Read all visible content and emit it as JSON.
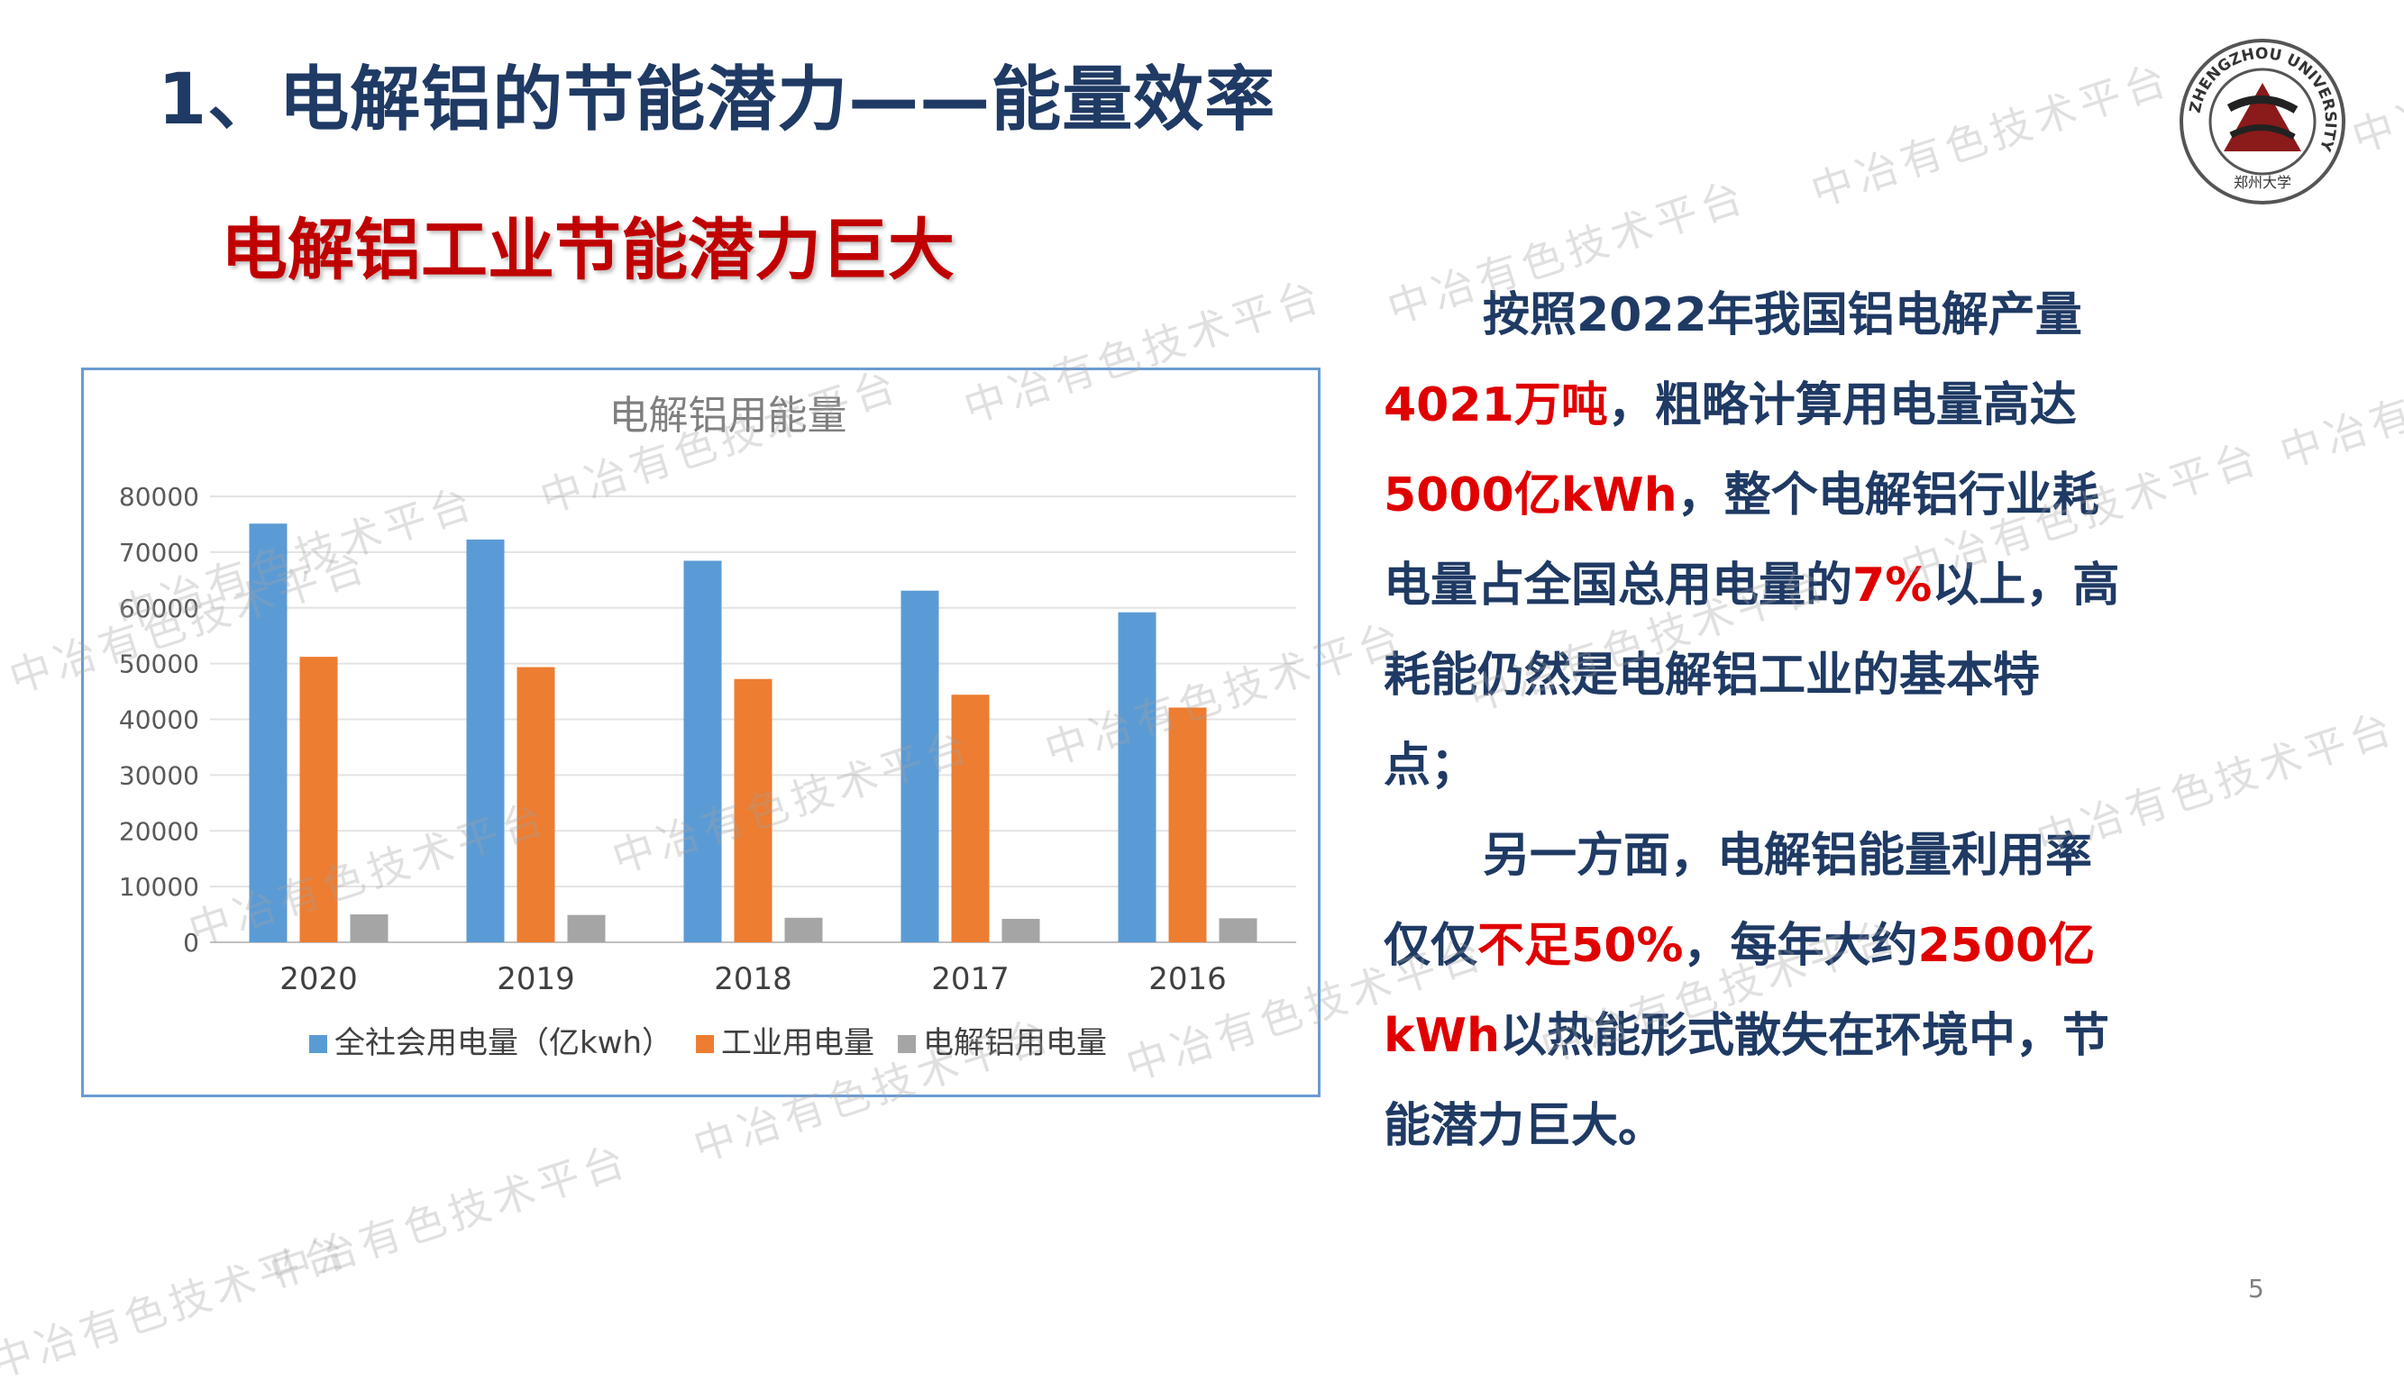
{
  "slide": {
    "title": "1、电解铝的节能潜力——能量效率",
    "subtitle": "电解铝工业节能潜力巨大",
    "page_number": "5",
    "watermark": "中冶有色技术平台",
    "logo": {
      "ring_text": "ZHENGZHOU UNIVERSITY",
      "bottom_text": "郑州大学"
    }
  },
  "paragraph1": {
    "p1": "按照2022年我国铝电解产量",
    "hl1": "4021万吨",
    "p2": "，粗略计算用电量高达",
    "hl2": "5000亿kWh",
    "p3": "，整个电解铝行业耗电量占全国总用电量的",
    "hl3": "7%",
    "p4": "以上，高耗能仍然是电解铝工业的基本特点；"
  },
  "paragraph2": {
    "p1": "另一方面，电解铝能量利用率仅仅",
    "hl1": "不足50%",
    "p2": "，每年大约",
    "hl2": "2500亿kWh",
    "p3": "以热能形式散失在环境中，节能潜力巨大。"
  },
  "chart_data": {
    "type": "bar",
    "title": "电解铝用能量",
    "categories": [
      "2020",
      "2019",
      "2018",
      "2017",
      "2016"
    ],
    "y_ticks": [
      "0",
      "10000",
      "20000",
      "30000",
      "40000",
      "50000",
      "60000",
      "70000",
      "80000"
    ],
    "ylim": [
      0,
      80000
    ],
    "grid": true,
    "legend_position": "bottom",
    "series": [
      {
        "name": "全社会用电量（亿kwh）",
        "color": "#5b9bd5",
        "values": [
          75110,
          72255,
          68449,
          63077,
          59198
        ]
      },
      {
        "name": "工业用电量",
        "color": "#ed7d31",
        "values": [
          51215,
          49362,
          47235,
          44413,
          42108
        ]
      },
      {
        "name": "电解铝用电量",
        "color": "#a5a5a5",
        "values": [
          5000,
          4900,
          4400,
          4200,
          4300
        ]
      }
    ]
  }
}
